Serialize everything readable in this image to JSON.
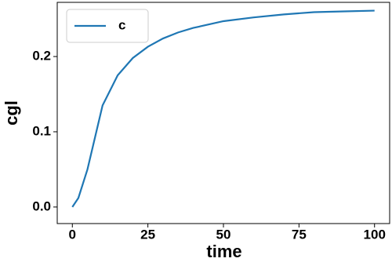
{
  "chart_data": {
    "type": "line",
    "xlabel": "time",
    "ylabel": "cgl",
    "x": [
      0,
      2,
      5,
      10,
      15,
      20,
      25,
      30,
      35,
      40,
      50,
      60,
      70,
      80,
      90,
      100
    ],
    "series": [
      {
        "name": "c",
        "color": "#1f77b4",
        "values": [
          0,
          0.012,
          0.05,
          0.135,
          0.175,
          0.198,
          0.213,
          0.224,
          0.232,
          0.238,
          0.247,
          0.252,
          0.256,
          0.259,
          0.26,
          0.261
        ]
      }
    ],
    "xlim": [
      -5,
      105
    ],
    "xticks": [
      0,
      25,
      50,
      75,
      100
    ],
    "ylim": [
      -0.022,
      0.272
    ],
    "yticks": [
      {
        "value": 0,
        "label": "0.0"
      },
      0.1,
      0.2
    ],
    "legend": "upper left"
  }
}
